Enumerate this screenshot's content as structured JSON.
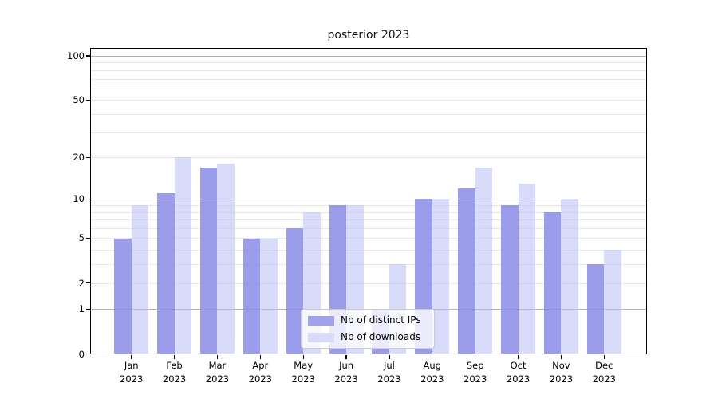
{
  "chart_data": {
    "type": "bar",
    "title": "posterior 2023",
    "categories": [
      "Jan",
      "Feb",
      "Mar",
      "Apr",
      "May",
      "Jun",
      "Jul",
      "Aug",
      "Sep",
      "Oct",
      "Nov",
      "Dec"
    ],
    "year_label": "2023",
    "series": [
      {
        "name": "Nb of distinct IPs",
        "values": [
          5,
          11,
          17,
          5,
          6,
          9,
          1,
          10,
          12,
          9,
          8,
          3
        ],
        "color": "#a0a2ec",
        "fill_rgba": "rgba(137,140,232,0.85)"
      },
      {
        "name": "Nb of downloads",
        "values": [
          9,
          20,
          18,
          5,
          8,
          9,
          3,
          10,
          17,
          13,
          10,
          4
        ],
        "color": "#d8dbf8",
        "fill_rgba": "rgba(190,195,245,0.6)"
      }
    ],
    "y_axis": {
      "scale": "log1p",
      "ticks": [
        0,
        1,
        2,
        5,
        10,
        20,
        50,
        100
      ],
      "tick_labels": [
        "0",
        "1",
        "2",
        "5",
        "10",
        "20",
        "50",
        "100"
      ],
      "ylim": [
        0,
        110
      ],
      "major_gridlines": [
        1,
        10,
        100
      ],
      "minor_gridlines": [
        2,
        3,
        4,
        5,
        6,
        7,
        8,
        9,
        20,
        30,
        40,
        50,
        60,
        70,
        80,
        90
      ]
    },
    "legend": {
      "position": "lower center",
      "labels": [
        "Nb of distinct IPs",
        "Nb of downloads"
      ]
    },
    "grid": "on"
  },
  "colors": {
    "background": "#ffffff",
    "spine": "#000000",
    "major_gridline": "#b0b0b0",
    "minor_gridline": "#e8e8e8",
    "text": "#000000",
    "legend_border": "#cccccc"
  }
}
